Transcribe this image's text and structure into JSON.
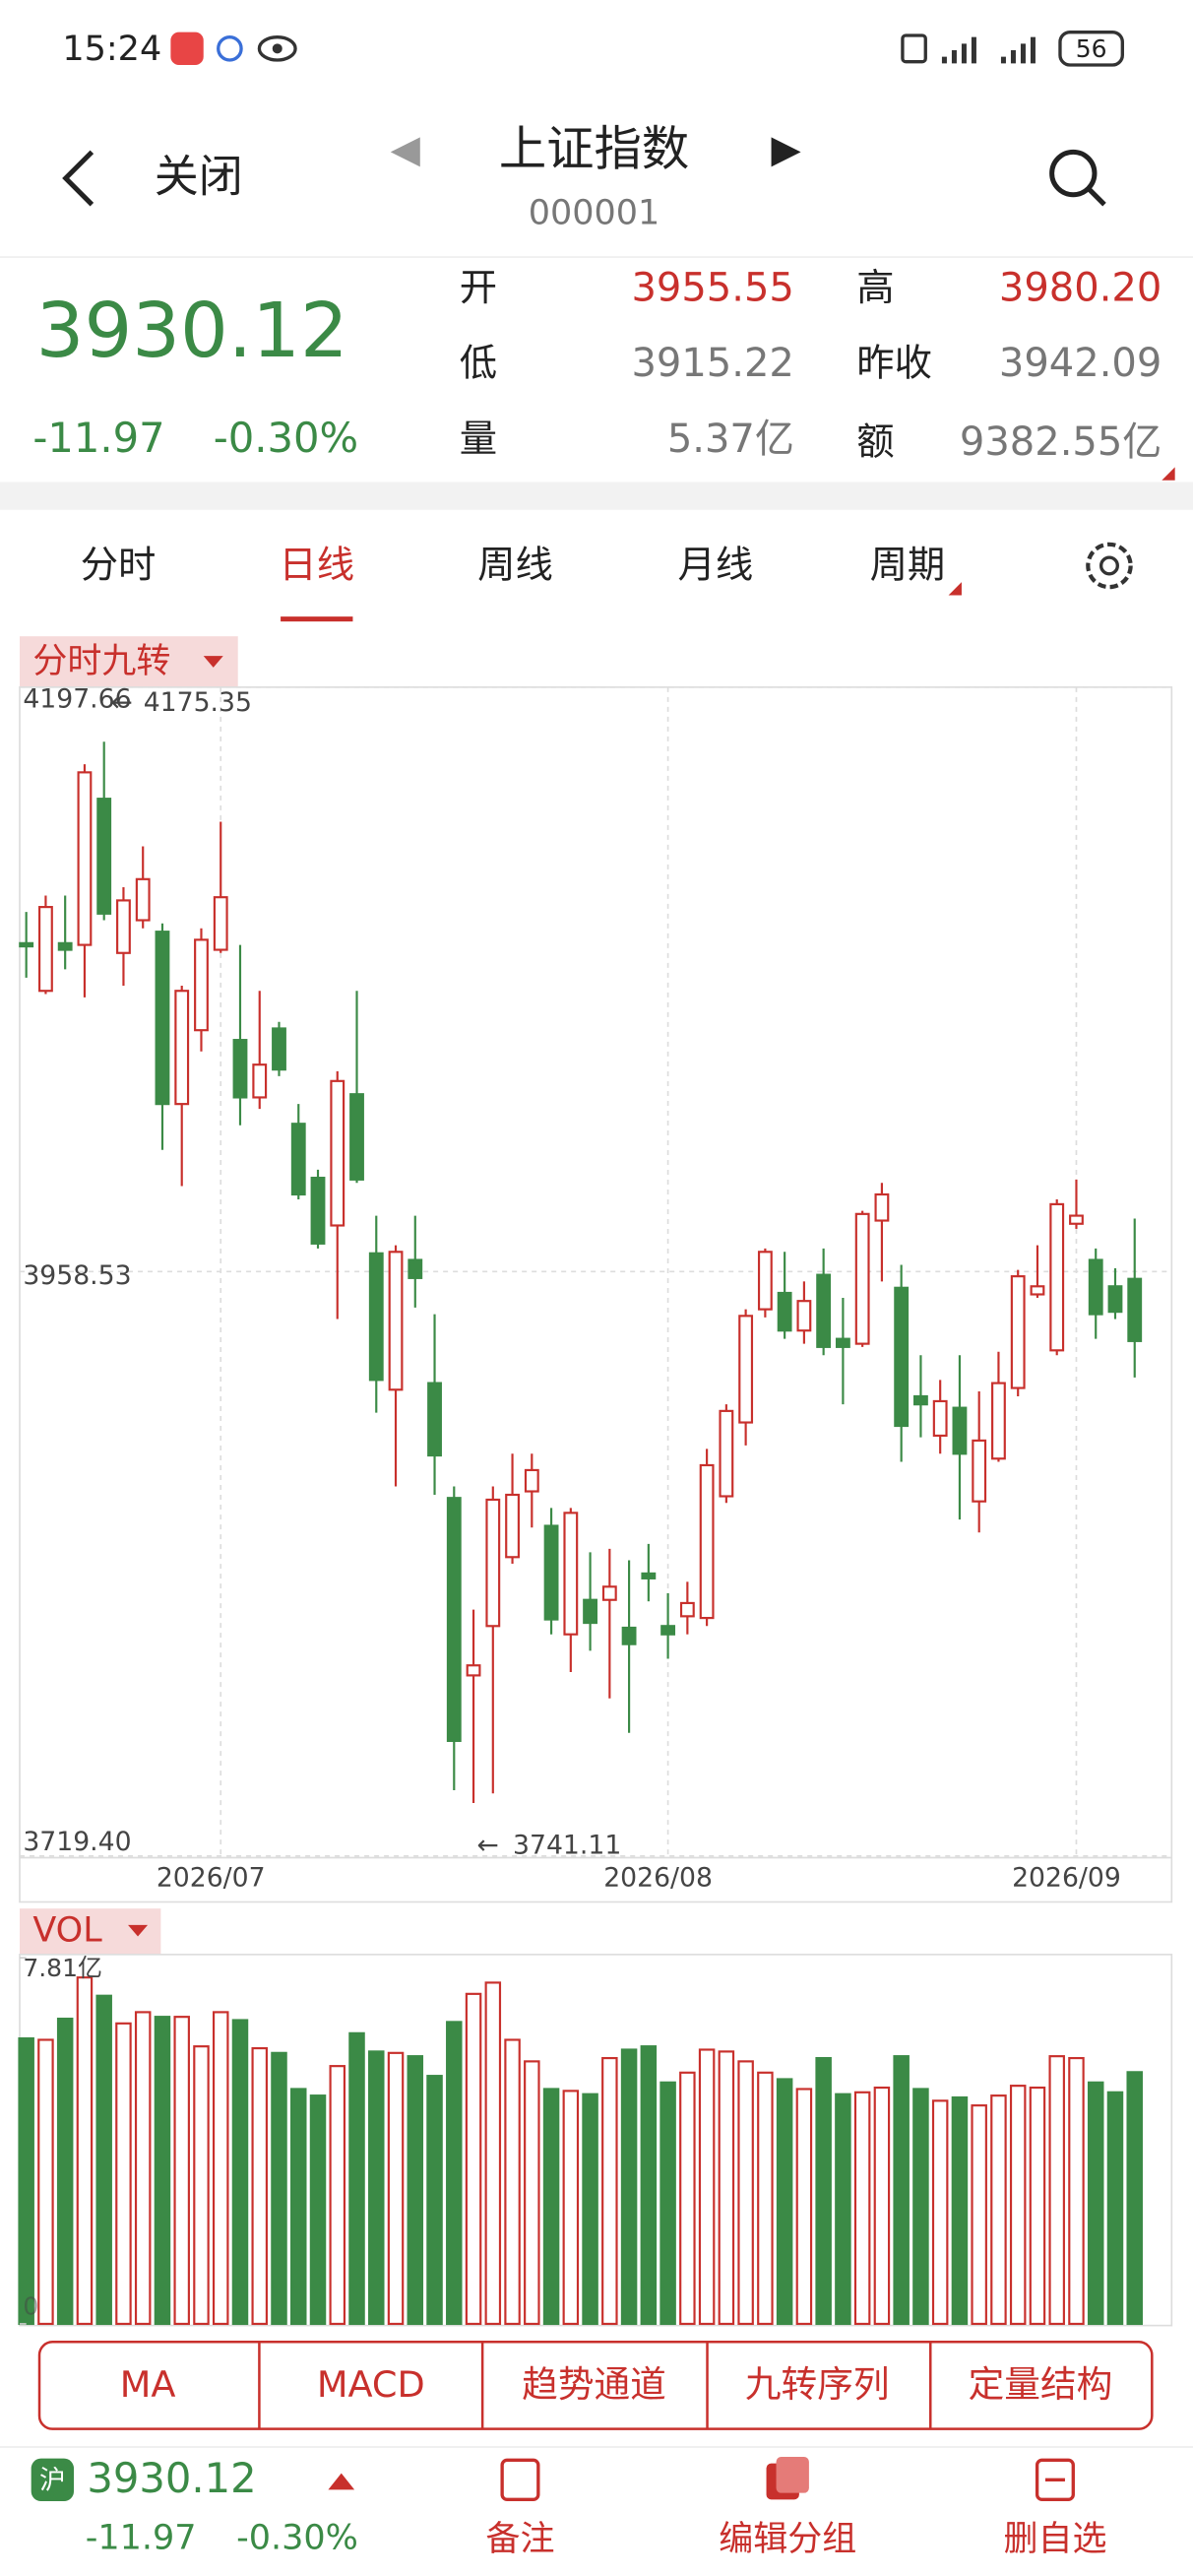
{
  "status_bar": {
    "time": "15:24",
    "battery": "56"
  },
  "header": {
    "close": "关闭",
    "title": "上证指数",
    "code": "000001"
  },
  "quote": {
    "price": "3930.12",
    "change": "-11.97",
    "change_pct": "-0.30%",
    "fields": [
      {
        "label": "开",
        "value": "3955.55"
      },
      {
        "label": "高",
        "value": "3980.20"
      },
      {
        "label": "低",
        "value": "3915.22"
      },
      {
        "label": "昨收",
        "value": "3942.09"
      },
      {
        "label": "量",
        "value": "5.37亿"
      },
      {
        "label": "额",
        "value": "9382.55亿"
      }
    ]
  },
  "tabs": [
    "分时",
    "日线",
    "周线",
    "月线",
    "周期"
  ],
  "indicator_buttons": [
    "MA",
    "MACD",
    "趋势通道",
    "九转序列",
    "定量结构"
  ],
  "footer": {
    "market": "沪",
    "price": "3930.12",
    "change": "-11.97",
    "change_pct": "-0.30%",
    "actions": [
      "备注",
      "编辑分组",
      "删自选"
    ]
  },
  "chart_data": [
    {
      "type": "candlestick",
      "title": "分时九转",
      "categories": [
        null,
        null,
        null,
        null,
        null,
        null,
        null,
        null,
        null,
        null,
        "2026/07",
        null,
        null,
        null,
        null,
        null,
        null,
        null,
        null,
        null,
        null,
        null,
        null,
        null,
        null,
        null,
        null,
        null,
        null,
        null,
        null,
        null,
        null,
        "2026/08",
        null,
        null,
        null,
        null,
        null,
        null,
        null,
        null,
        null,
        null,
        null,
        null,
        null,
        null,
        null,
        null,
        null,
        null,
        null,
        null,
        "2026/09",
        null,
        null,
        null
      ],
      "open": [
        4092.9,
        4073.4,
        4092.9,
        4092.2,
        4152.0,
        4088.9,
        4102.3,
        4097.6,
        4027.1,
        4057.3,
        4090.2,
        4053.3,
        4029.8,
        4058.0,
        4019.0,
        3996.9,
        3977.4,
        4031.1,
        3966.0,
        3910.2,
        3963.3,
        3912.9,
        3865.9,
        3793.3,
        3813.5,
        3841.7,
        3868.6,
        3854.5,
        3810.1,
        3824.2,
        3824.2,
        3812.8,
        3835.0,
        3813.5,
        3817.5,
        3816.8,
        3866.6,
        3896.8,
        3943.1,
        3949.8,
        3934.4,
        3957.2,
        3931.0,
        3929.0,
        3979.4,
        3951.9,
        3907.5,
        3891.4,
        3902.8,
        3864.5,
        3882.0,
        3910.9,
        3949.2,
        3926.3,
        3978.1,
        3963.3,
        3952.5,
        3955.55
      ],
      "high": [
        4105.7,
        4112.4,
        4112.4,
        4166.1,
        4175.35,
        4115.8,
        4132.5,
        4101.0,
        4075.5,
        4099.0,
        4142.6,
        4092.2,
        4073.4,
        4060.7,
        4027.1,
        4000.2,
        4040.5,
        4073.4,
        3981.4,
        3969.3,
        3981.4,
        3941.1,
        3870.6,
        3820.2,
        3870.6,
        3884.0,
        3884.0,
        3861.8,
        3861.8,
        3843.7,
        3845.1,
        3840.4,
        3847.1,
        3826.9,
        3831.6,
        3886.0,
        3904.2,
        3943.1,
        3968.0,
        3966.6,
        3954.5,
        3968.0,
        3947.8,
        3983.4,
        3994.8,
        3961.3,
        3924.3,
        3914.2,
        3924.3,
        3909.5,
        3925.7,
        3959.2,
        3969.3,
        3988.1,
        3996.2,
        3968.0,
        3959.9,
        3980.2
      ],
      "low": [
        4078.8,
        4072.1,
        4082.2,
        4070.7,
        4102.3,
        4075.5,
        4099.0,
        4008.3,
        3993.5,
        4048.6,
        4088.9,
        4018.4,
        4025.1,
        4038.5,
        3988.1,
        3968.0,
        3939.1,
        3994.8,
        3900.8,
        3870.6,
        3943.8,
        3867.2,
        3746.3,
        3741.11,
        3745.0,
        3839.0,
        3853.8,
        3810.1,
        3794.7,
        3803.4,
        3783.9,
        3769.8,
        3823.6,
        3800.1,
        3810.1,
        3813.5,
        3863.9,
        3887.4,
        3939.8,
        3931.0,
        3929.0,
        3924.3,
        3904.2,
        3927.7,
        3954.5,
        3880.7,
        3890.7,
        3884.0,
        3857.1,
        3851.8,
        3880.7,
        3907.5,
        3947.8,
        3924.3,
        3976.0,
        3931.0,
        3939.1,
        3915.22
      ],
      "close": [
        4091.6,
        4107.7,
        4090.2,
        4162.8,
        4105.0,
        4110.4,
        4119.1,
        4027.1,
        4073.4,
        4094.3,
        4111.7,
        4029.8,
        4043.2,
        4041.2,
        3990.1,
        3970.0,
        4036.5,
        3996.2,
        3914.2,
        3966.6,
        3955.9,
        3883.3,
        3766.5,
        3797.4,
        3865.2,
        3867.2,
        3877.3,
        3816.2,
        3859.8,
        3814.8,
        3829.6,
        3806.1,
        3833.0,
        3810.1,
        3822.9,
        3879.3,
        3901.5,
        3940.4,
        3966.6,
        3934.4,
        3946.5,
        3927.7,
        3927.7,
        3982.1,
        3990.1,
        3895.4,
        3904.2,
        3905.5,
        3884.0,
        3889.4,
        3912.9,
        3956.6,
        3952.5,
        3986.1,
        3981.4,
        3941.1,
        3942.09,
        3930.12
      ],
      "ylim": [
        3719.4,
        4197.66
      ],
      "yticks": [
        4197.66,
        3958.53,
        {
          "value": 3719.4,
          "label": "3719.40"
        }
      ],
      "up_color": "#c8302c",
      "down_color": "#3b8a46",
      "grid": true
    },
    {
      "type": "bar",
      "title": "VOL",
      "values": [
        6.09,
        6.06,
        6.51,
        7.39,
        7.0,
        6.41,
        6.65,
        6.55,
        6.55,
        5.92,
        6.65,
        6.48,
        5.88,
        5.78,
        5.01,
        4.87,
        5.5,
        6.2,
        5.81,
        5.78,
        5.71,
        5.29,
        6.44,
        7.04,
        7.28,
        6.06,
        5.6,
        5.01,
        4.97,
        4.9,
        5.67,
        5.85,
        5.92,
        5.15,
        5.36,
        5.85,
        5.81,
        5.6,
        5.36,
        5.22,
        5.01,
        5.67,
        4.9,
        4.94,
        5.04,
        5.71,
        5.01,
        4.76,
        4.83,
        4.66,
        4.87,
        5.08,
        5.04,
        5.71,
        5.67,
        5.15,
        4.94,
        5.37
      ],
      "ylim": [
        0,
        7.81
      ],
      "yticks": [
        {
          "value": 7.81,
          "label": "7.81亿"
        },
        0
      ]
    }
  ]
}
